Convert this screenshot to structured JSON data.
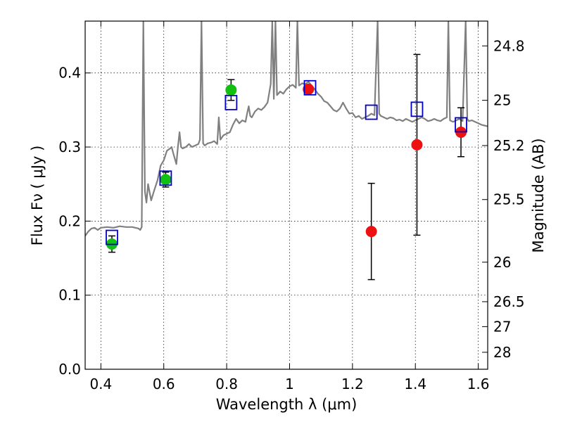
{
  "chart_data": {
    "type": "scatter",
    "xlabel": "Wavelength  λ (μm)",
    "ylabel": "Flux  Fν  ( μJy )",
    "ylabel_right": "Magnitude (AB)",
    "xlim": [
      0.35,
      1.63
    ],
    "ylim": [
      0.0,
      0.47
    ],
    "x_ticks": [
      0.4,
      0.6,
      0.8,
      1.0,
      1.2,
      1.4,
      1.6
    ],
    "x_tick_labels": [
      "0.4",
      "0.6",
      "0.8",
      "1",
      "1.2",
      "1.4",
      "1.6"
    ],
    "y_ticks": [
      0.0,
      0.1,
      0.2,
      0.3,
      0.4
    ],
    "y_tick_labels": [
      "0.0",
      "0.1",
      "0.2",
      "0.3",
      "0.4"
    ],
    "right_axis_ticks": [
      {
        "label": "24.8",
        "mag": 24.8
      },
      {
        "label": "25",
        "mag": 25.0
      },
      {
        "label": "25.2",
        "mag": 25.2
      },
      {
        "label": "25.5",
        "mag": 25.5
      },
      {
        "label": "26",
        "mag": 26.0
      },
      {
        "label": "26.5",
        "mag": 26.5
      },
      {
        "label": "27",
        "mag": 27.0
      },
      {
        "label": "28",
        "mag": 28.0
      }
    ],
    "grid": true,
    "colors": {
      "spectrum": "#808080",
      "green": "#11c011",
      "red": "#ee1111",
      "model": "#0000cc",
      "errorbar": "#000000"
    },
    "series": [
      {
        "marker": "circle",
        "color": "green",
        "points": [
          {
            "x": 0.435,
            "y": 0.169,
            "err": 0.011
          },
          {
            "x": 0.606,
            "y": 0.256,
            "err": 0.01
          },
          {
            "x": 0.814,
            "y": 0.377,
            "err": 0.014
          }
        ]
      },
      {
        "marker": "circle",
        "color": "red",
        "points": [
          {
            "x": 1.06,
            "y": 0.378,
            "err": 0.0
          },
          {
            "x": 1.26,
            "y": 0.186,
            "err": 0.065
          },
          {
            "x": 1.405,
            "y": 0.303,
            "err": 0.122
          },
          {
            "x": 1.545,
            "y": 0.32,
            "err": 0.033
          }
        ]
      },
      {
        "marker": "open-square",
        "color": "model",
        "points": [
          {
            "x": 0.435,
            "y": 0.178
          },
          {
            "x": 0.606,
            "y": 0.258
          },
          {
            "x": 0.814,
            "y": 0.36
          },
          {
            "x": 1.065,
            "y": 0.38
          },
          {
            "x": 1.26,
            "y": 0.347
          },
          {
            "x": 1.405,
            "y": 0.351
          },
          {
            "x": 1.545,
            "y": 0.33
          }
        ]
      }
    ],
    "spectrum": [
      [
        0.35,
        0.18
      ],
      [
        0.36,
        0.186
      ],
      [
        0.37,
        0.19
      ],
      [
        0.38,
        0.191
      ],
      [
        0.39,
        0.188
      ],
      [
        0.4,
        0.191
      ],
      [
        0.42,
        0.192
      ],
      [
        0.44,
        0.191
      ],
      [
        0.46,
        0.193
      ],
      [
        0.48,
        0.192
      ],
      [
        0.5,
        0.192
      ],
      [
        0.52,
        0.19
      ],
      [
        0.525,
        0.188
      ],
      [
        0.53,
        0.192
      ],
      [
        0.535,
        0.47
      ],
      [
        0.54,
        0.24
      ],
      [
        0.545,
        0.225
      ],
      [
        0.55,
        0.25
      ],
      [
        0.56,
        0.228
      ],
      [
        0.57,
        0.242
      ],
      [
        0.58,
        0.255
      ],
      [
        0.59,
        0.275
      ],
      [
        0.6,
        0.282
      ],
      [
        0.61,
        0.295
      ],
      [
        0.62,
        0.298
      ],
      [
        0.625,
        0.3
      ],
      [
        0.63,
        0.292
      ],
      [
        0.64,
        0.277
      ],
      [
        0.645,
        0.3
      ],
      [
        0.65,
        0.32
      ],
      [
        0.655,
        0.3
      ],
      [
        0.66,
        0.298
      ],
      [
        0.67,
        0.3
      ],
      [
        0.68,
        0.304
      ],
      [
        0.69,
        0.3
      ],
      [
        0.7,
        0.302
      ],
      [
        0.71,
        0.304
      ],
      [
        0.715,
        0.31
      ],
      [
        0.72,
        0.47
      ],
      [
        0.725,
        0.305
      ],
      [
        0.73,
        0.302
      ],
      [
        0.74,
        0.305
      ],
      [
        0.75,
        0.306
      ],
      [
        0.76,
        0.308
      ],
      [
        0.77,
        0.304
      ],
      [
        0.775,
        0.34
      ],
      [
        0.78,
        0.31
      ],
      [
        0.79,
        0.316
      ],
      [
        0.8,
        0.318
      ],
      [
        0.81,
        0.32
      ],
      [
        0.82,
        0.33
      ],
      [
        0.83,
        0.338
      ],
      [
        0.84,
        0.332
      ],
      [
        0.85,
        0.336
      ],
      [
        0.86,
        0.334
      ],
      [
        0.865,
        0.345
      ],
      [
        0.87,
        0.355
      ],
      [
        0.875,
        0.342
      ],
      [
        0.88,
        0.34
      ],
      [
        0.89,
        0.348
      ],
      [
        0.9,
        0.352
      ],
      [
        0.91,
        0.35
      ],
      [
        0.92,
        0.354
      ],
      [
        0.93,
        0.36
      ],
      [
        0.94,
        0.385
      ],
      [
        0.945,
        0.47
      ],
      [
        0.95,
        0.365
      ],
      [
        0.955,
        0.47
      ],
      [
        0.96,
        0.37
      ],
      [
        0.97,
        0.375
      ],
      [
        0.98,
        0.372
      ],
      [
        0.99,
        0.378
      ],
      [
        1.0,
        0.382
      ],
      [
        1.01,
        0.384
      ],
      [
        1.02,
        0.38
      ],
      [
        1.025,
        0.47
      ],
      [
        1.03,
        0.383
      ],
      [
        1.04,
        0.386
      ],
      [
        1.05,
        0.385
      ],
      [
        1.06,
        0.388
      ],
      [
        1.07,
        0.383
      ],
      [
        1.08,
        0.378
      ],
      [
        1.09,
        0.372
      ],
      [
        1.1,
        0.368
      ],
      [
        1.11,
        0.362
      ],
      [
        1.12,
        0.36
      ],
      [
        1.13,
        0.355
      ],
      [
        1.14,
        0.35
      ],
      [
        1.15,
        0.348
      ],
      [
        1.16,
        0.352
      ],
      [
        1.17,
        0.36
      ],
      [
        1.18,
        0.352
      ],
      [
        1.19,
        0.345
      ],
      [
        1.2,
        0.346
      ],
      [
        1.21,
        0.34
      ],
      [
        1.22,
        0.342
      ],
      [
        1.23,
        0.338
      ],
      [
        1.24,
        0.34
      ],
      [
        1.25,
        0.342
      ],
      [
        1.26,
        0.345
      ],
      [
        1.27,
        0.343
      ],
      [
        1.28,
        0.47
      ],
      [
        1.285,
        0.345
      ],
      [
        1.29,
        0.342
      ],
      [
        1.3,
        0.34
      ],
      [
        1.31,
        0.338
      ],
      [
        1.32,
        0.34
      ],
      [
        1.33,
        0.339
      ],
      [
        1.34,
        0.336
      ],
      [
        1.35,
        0.337
      ],
      [
        1.36,
        0.335
      ],
      [
        1.37,
        0.338
      ],
      [
        1.38,
        0.336
      ],
      [
        1.39,
        0.334
      ],
      [
        1.4,
        0.336
      ],
      [
        1.41,
        0.338
      ],
      [
        1.42,
        0.34
      ],
      [
        1.43,
        0.338
      ],
      [
        1.44,
        0.335
      ],
      [
        1.45,
        0.336
      ],
      [
        1.46,
        0.338
      ],
      [
        1.47,
        0.336
      ],
      [
        1.48,
        0.335
      ],
      [
        1.49,
        0.338
      ],
      [
        1.5,
        0.34
      ],
      [
        1.505,
        0.47
      ],
      [
        1.51,
        0.336
      ],
      [
        1.52,
        0.334
      ],
      [
        1.53,
        0.336
      ],
      [
        1.54,
        0.338
      ],
      [
        1.55,
        0.335
      ],
      [
        1.56,
        0.47
      ],
      [
        1.565,
        0.338
      ],
      [
        1.57,
        0.335
      ],
      [
        1.58,
        0.336
      ],
      [
        1.59,
        0.334
      ],
      [
        1.6,
        0.332
      ],
      [
        1.61,
        0.33
      ],
      [
        1.62,
        0.329
      ],
      [
        1.63,
        0.328
      ]
    ]
  }
}
